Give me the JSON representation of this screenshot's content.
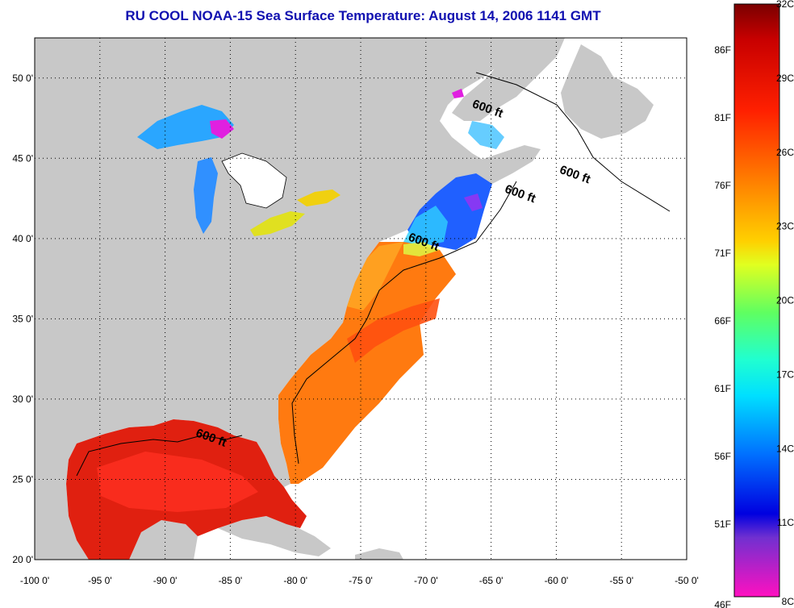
{
  "title": "RU COOL  NOAA-15  Sea Surface Temperature:  August 14, 2006 1141 GMT",
  "map": {
    "lon_range": [
      -100,
      -50
    ],
    "lat_range": [
      20,
      52.5
    ],
    "lat_ticks": [
      {
        "value": 50,
        "label": "50 0'"
      },
      {
        "value": 45,
        "label": "45 0'"
      },
      {
        "value": 40,
        "label": "40 0'"
      },
      {
        "value": 35,
        "label": "35 0'"
      },
      {
        "value": 30,
        "label": "30 0'"
      },
      {
        "value": 25,
        "label": "25 0'"
      },
      {
        "value": 20,
        "label": "20 0'"
      }
    ],
    "lon_ticks": [
      {
        "value": -100,
        "label": "-100 0'"
      },
      {
        "value": -95,
        "label": "-95 0'"
      },
      {
        "value": -90,
        "label": "-90 0'"
      },
      {
        "value": -85,
        "label": "-85 0'"
      },
      {
        "value": -80,
        "label": "-80 0'"
      },
      {
        "value": -75,
        "label": "-75 0'"
      },
      {
        "value": -70,
        "label": "-70 0'"
      },
      {
        "value": -65,
        "label": "-65 0'"
      },
      {
        "value": -60,
        "label": "-60 0'"
      },
      {
        "value": -55,
        "label": "-55 0'"
      },
      {
        "value": -50,
        "label": "-50 0'"
      }
    ],
    "depth_labels": [
      {
        "text": "600 ft",
        "lon": -66.5,
        "lat": 48.2
      },
      {
        "text": "600 ft",
        "lon": -59.8,
        "lat": 44.1
      },
      {
        "text": "600 ft",
        "lon": -64.0,
        "lat": 42.9
      },
      {
        "text": "600 ft",
        "lon": -71.4,
        "lat": 39.9
      },
      {
        "text": "600 ft",
        "lon": -87.7,
        "lat": 27.7
      }
    ],
    "colors": {
      "land": "#c8c8c8",
      "cloud": "#ffffff",
      "grid": "#000000"
    }
  },
  "colorbar": {
    "fahrenheit": [
      "86F",
      "81F",
      "76F",
      "71F",
      "66F",
      "61F",
      "56F",
      "51F",
      "46F"
    ],
    "celsius": [
      "32C",
      "29C",
      "26C",
      "23C",
      "20C",
      "17C",
      "14C",
      "11C",
      "8C"
    ]
  }
}
